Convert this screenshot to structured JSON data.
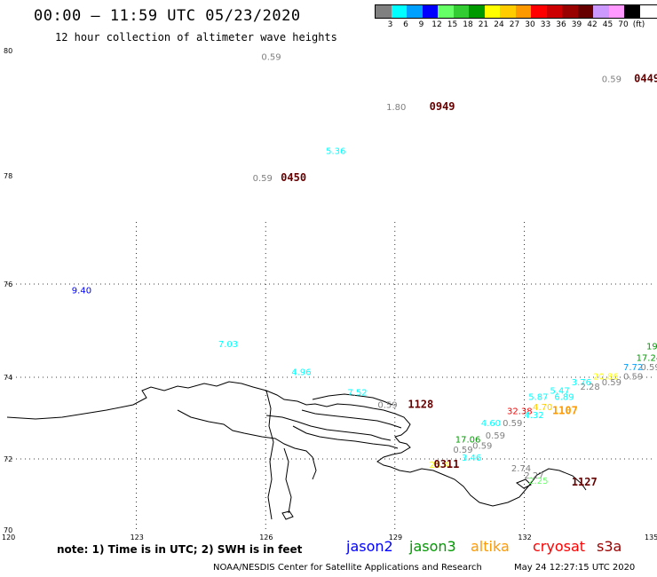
{
  "header": {
    "title": "00:00 – 11:59 UTC 05/23/2020",
    "subtitle": "12 hour collection of altimeter wave heights"
  },
  "legend": {
    "colors": [
      "#808080",
      "#00ffff",
      "#00a0ff",
      "#0000ff",
      "#66ff66",
      "#33cc33",
      "#009900",
      "#ffff00",
      "#ffcc00",
      "#ff9900",
      "#ff0000",
      "#cc0000",
      "#990000",
      "#660000",
      "#cc99ff",
      "#ff99ff",
      "#000000"
    ],
    "labels": [
      "3",
      "6",
      "9",
      "12",
      "15",
      "18",
      "21",
      "24",
      "27",
      "30",
      "33",
      "36",
      "39",
      "42",
      "45",
      "70",
      "(ft)"
    ]
  },
  "axes": {
    "lat_labels": [
      "80",
      "78",
      "76",
      "74",
      "72",
      "70"
    ],
    "lon_labels": [
      "120",
      "123",
      "126",
      "129",
      "132",
      "135"
    ]
  },
  "chart_data": {
    "type": "scatter",
    "title": "00:00 – 11:59 UTC 05/23/2020",
    "subtitle": "12 hour collection of altimeter wave heights",
    "xlabel": "",
    "ylabel": "",
    "xlim": [
      120,
      135
    ],
    "ylim": [
      70,
      80
    ],
    "observations": [
      {
        "lon": 125.9,
        "lat": 79.85,
        "swh": "0.59",
        "color": "#808080"
      },
      {
        "lon": 133.8,
        "lat": 79.5,
        "swh": "0.59",
        "color": "#808080"
      },
      {
        "lon": 128.8,
        "lat": 79.05,
        "swh": "1.80",
        "color": "#808080"
      },
      {
        "lon": 127.4,
        "lat": 78.35,
        "swh": "5.36",
        "color": "#00ffff"
      },
      {
        "lon": 125.7,
        "lat": 77.9,
        "swh": "0.59",
        "color": "#808080"
      },
      {
        "lon": 121.5,
        "lat": 75.8,
        "swh": "9.40",
        "color": "#0000ff"
      },
      {
        "lon": 124.9,
        "lat": 74.65,
        "swh": "7.03",
        "color": "#00ffff"
      },
      {
        "lon": 126.6,
        "lat": 74.05,
        "swh": "4.96",
        "color": "#00ffff"
      },
      {
        "lon": 127.9,
        "lat": 73.55,
        "swh": "7.52",
        "color": "#00ffff"
      },
      {
        "lon": 128.6,
        "lat": 73.25,
        "swh": "0.59",
        "color": "#808080"
      },
      {
        "lon": 130.4,
        "lat": 72.4,
        "swh": "17.06",
        "color": "#009900"
      },
      {
        "lon": 130.35,
        "lat": 72.15,
        "swh": "0.59",
        "color": "#808080"
      },
      {
        "lon": 130.8,
        "lat": 72.25,
        "swh": "0.59",
        "color": "#808080"
      },
      {
        "lon": 130.55,
        "lat": 71.95,
        "swh": "3.46",
        "color": "#00ffff"
      },
      {
        "lon": 131.0,
        "lat": 72.8,
        "swh": "4.60",
        "color": "#00ffff"
      },
      {
        "lon": 131.5,
        "lat": 72.8,
        "swh": "0.59",
        "color": "#808080"
      },
      {
        "lon": 131.1,
        "lat": 72.5,
        "swh": "0.59",
        "color": "#808080"
      },
      {
        "lon": 131.6,
        "lat": 73.1,
        "swh": "32.38",
        "color": "#ff0000"
      },
      {
        "lon": 132.1,
        "lat": 73.45,
        "swh": "5.87",
        "color": "#00ffff"
      },
      {
        "lon": 132.2,
        "lat": 73.2,
        "swh": "4.70",
        "color": "#ffcc00"
      },
      {
        "lon": 132.0,
        "lat": 73.0,
        "swh": "4.32",
        "color": "#00ffff"
      },
      {
        "lon": 132.6,
        "lat": 73.6,
        "swh": "5.47",
        "color": "#00ffff"
      },
      {
        "lon": 132.7,
        "lat": 73.45,
        "swh": "6.89",
        "color": "#00ffff"
      },
      {
        "lon": 133.1,
        "lat": 73.8,
        "swh": "3.76",
        "color": "#00ffff"
      },
      {
        "lon": 133.3,
        "lat": 73.7,
        "swh": "2.28",
        "color": "#808080"
      },
      {
        "lon": 133.6,
        "lat": 73.95,
        "swh": "20.86",
        "color": "#ffff00"
      },
      {
        "lon": 133.8,
        "lat": 73.8,
        "swh": "0.59",
        "color": "#808080"
      },
      {
        "lon": 134.3,
        "lat": 74.15,
        "swh": "7.72",
        "color": "#00a0ff"
      },
      {
        "lon": 134.3,
        "lat": 73.95,
        "swh": "0.59",
        "color": "#808080"
      },
      {
        "lon": 134.7,
        "lat": 74.15,
        "swh": "0.59",
        "color": "#808080"
      },
      {
        "lon": 134.6,
        "lat": 74.35,
        "swh": "17.24",
        "color": "#009900"
      },
      {
        "lon": 135.0,
        "lat": 74.6,
        "swh": "19",
        "color": "#009900"
      },
      {
        "lon": 131.7,
        "lat": 71.65,
        "swh": "2.74",
        "color": "#808080"
      },
      {
        "lon": 132.0,
        "lat": 71.45,
        "swh": "2.27",
        "color": "#808080"
      },
      {
        "lon": 132.1,
        "lat": 71.3,
        "swh": "2.25",
        "color": "#66ff66"
      },
      {
        "lon": 129.8,
        "lat": 71.75,
        "swh": "25.4",
        "color": "#ffff00"
      }
    ],
    "time_labels": [
      {
        "lon": 126.35,
        "lat": 77.9,
        "text": "0450",
        "color": "#660000"
      },
      {
        "lon": 129.8,
        "lat": 79.05,
        "text": "0949",
        "color": "#660000"
      },
      {
        "lon": 134.55,
        "lat": 79.5,
        "text": "0449",
        "color": "#660000"
      },
      {
        "lon": 129.3,
        "lat": 73.25,
        "text": "1128",
        "color": "#660000"
      },
      {
        "lon": 129.9,
        "lat": 71.75,
        "text": "0311",
        "color": "#660000"
      },
      {
        "lon": 132.65,
        "lat": 73.1,
        "text": "1107",
        "color": "#ff9900"
      },
      {
        "lon": 133.1,
        "lat": 71.25,
        "text": "1127",
        "color": "#660000"
      }
    ]
  },
  "footer": {
    "note": "note: 1) Time is in UTC; 2) SWH is in feet",
    "satellites": [
      {
        "name": "jason2",
        "color": "#0000ff"
      },
      {
        "name": "jason3",
        "color": "#009900"
      },
      {
        "name": "altika",
        "color": "#ff9900"
      },
      {
        "name": "cryosat",
        "color": "#ff0000"
      },
      {
        "name": "s3a",
        "color": "#990000"
      }
    ],
    "credit": "NOAA/NESDIS Center for Satellite Applications and Research",
    "timestamp": "May 24 12:27:15 UTC 2020"
  }
}
